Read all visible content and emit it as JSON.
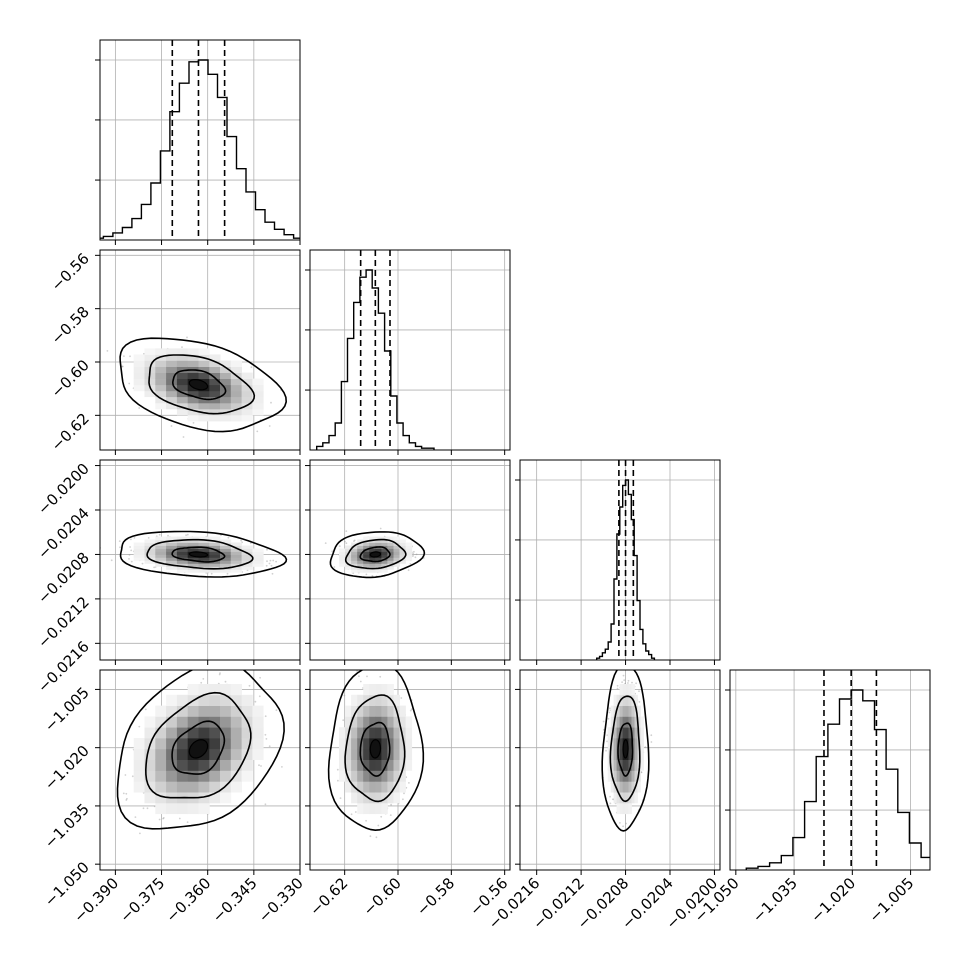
{
  "chart_data": {
    "type": "corner",
    "parameters": [
      {
        "range": [
          -0.395,
          -0.33
        ],
        "ticks": [
          -0.39,
          -0.375,
          -0.36,
          -0.345,
          -0.33
        ],
        "tick_labels": [
          "−0.390",
          "−0.375",
          "−0.360",
          "−0.345",
          "−0.330"
        ],
        "quantiles": [
          -0.3715,
          -0.363,
          -0.3545
        ],
        "hist": [
          1,
          2,
          4,
          7,
          12,
          20,
          32,
          50,
          72,
          88,
          100,
          101,
          93,
          80,
          58,
          40,
          27,
          17,
          10,
          6,
          3,
          1
        ]
      },
      {
        "range": [
          -0.633,
          -0.558
        ],
        "ticks": [
          -0.62,
          -0.6,
          -0.58,
          -0.56
        ],
        "tick_labels": [
          "−0.62",
          "−0.60",
          "−0.58",
          "−0.56"
        ],
        "quantiles": [
          -0.614,
          -0.6085,
          -0.603
        ],
        "hist": [
          2,
          4,
          8,
          15,
          38,
          62,
          82,
          96,
          100,
          90,
          76,
          55,
          30,
          15,
          8,
          4,
          2,
          1,
          1
        ]
      },
      {
        "range": [
          -0.02175,
          -0.01995
        ],
        "ticks": [
          -0.0216,
          -0.0212,
          -0.0208,
          -0.0204,
          -0.02
        ],
        "tick_labels": [
          "−0.0216",
          "−0.0212",
          "−0.0208",
          "−0.0204",
          "−0.0200"
        ],
        "quantiles": [
          -0.02086,
          -0.0208,
          -0.02073
        ],
        "hist": [
          1,
          2,
          4,
          6,
          10,
          20,
          45,
          70,
          85,
          97,
          100,
          92,
          78,
          58,
          33,
          17,
          9,
          5,
          3,
          1
        ]
      },
      {
        "range": [
          -1.0515,
          -1.0
        ],
        "ticks": [
          -1.05,
          -1.035,
          -1.02,
          -1.005
        ],
        "tick_labels": [
          "−1.050",
          "−1.035",
          "−1.020",
          "−1.005"
        ],
        "quantiles": [
          -1.0273,
          -1.0203,
          -1.0138
        ],
        "hist": [
          1,
          2,
          4,
          8,
          18,
          38,
          63,
          81,
          95,
          100,
          94,
          78,
          56,
          32,
          15,
          7,
          3,
          1
        ]
      }
    ],
    "contour_levels": [
      0.393,
      0.865,
      0.989
    ],
    "correlations": [
      [
        1,
        -0.35,
        -0.2,
        0.3
      ],
      [
        -0.35,
        1,
        0.15,
        0.05
      ],
      [
        -0.2,
        0.15,
        1,
        0.05
      ],
      [
        0.3,
        0.05,
        0.05,
        1
      ]
    ],
    "marginal_y_labels_shown": false,
    "grid": true
  }
}
